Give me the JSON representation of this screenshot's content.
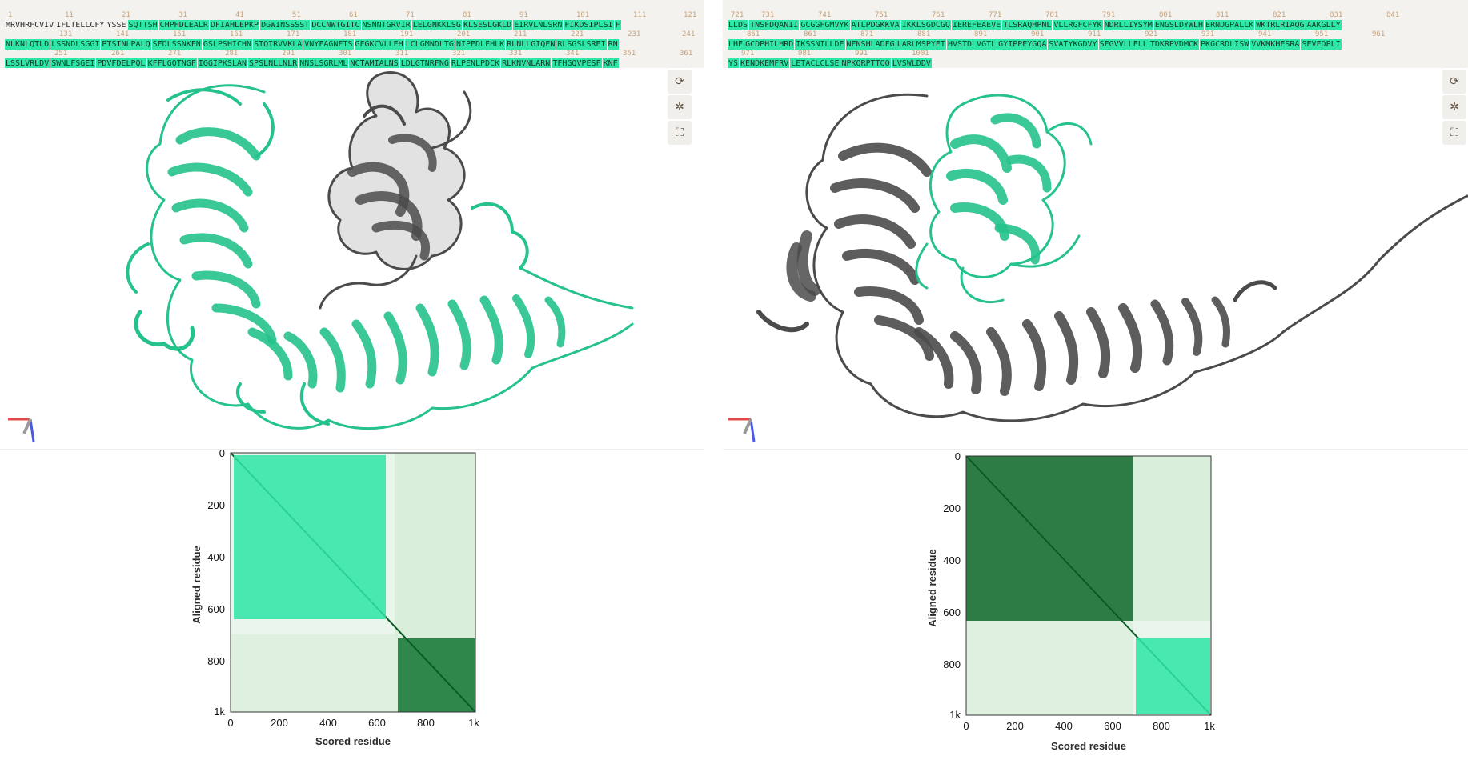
{
  "colors": {
    "accent": "#2ee6a6",
    "chain_highlight": "#25c28b",
    "chain_other": "#4b4b4b",
    "pae_dark": "#0c6a2a",
    "pae_light": "#e9f6ea",
    "selection": "#2ee6a6",
    "seq_bg": "#f4f2ee",
    "seq_num": "#c8a27a"
  },
  "icons": {
    "reset_view": "⟳",
    "center": "✲",
    "fullscreen": "⛶"
  },
  "left": {
    "sequence": {
      "rows": [
        {
          "numbers": [
            "1",
            "11",
            "21",
            "31",
            "41",
            "51",
            "61",
            "71",
            "81",
            "91",
            "101",
            "111",
            "121"
          ],
          "chunks": [
            {
              "t": "MRVHRFCVIV",
              "hl": false
            },
            {
              "t": "IFLTELLCFY",
              "hl": false
            },
            {
              "t": "YSSE",
              "hl": false
            },
            {
              "t": "SQTTSH",
              "hl": true
            },
            {
              "t": "CHPHDLEALR",
              "hl": true
            },
            {
              "t": "DFIAHLEPKP",
              "hl": true
            },
            {
              "t": "DGWINSSSST",
              "hl": true
            },
            {
              "t": "DCCNWTGITC",
              "hl": true
            },
            {
              "t": "NSNNTGRVIR",
              "hl": true
            },
            {
              "t": "LELGNKKLSG",
              "hl": true
            },
            {
              "t": "KLSESLGKLD",
              "hl": true
            },
            {
              "t": "EIRVLNLSRN",
              "hl": true
            },
            {
              "t": "FIKDSIPLSI",
              "hl": true
            },
            {
              "t": "F",
              "hl": true
            }
          ]
        },
        {
          "numbers": [
            "131",
            "141",
            "151",
            "161",
            "171",
            "181",
            "191",
            "201",
            "211",
            "221",
            "231",
            "241"
          ],
          "chunks": [
            {
              "t": "NLKNLQTLD",
              "hl": true
            },
            {
              "t": "LSSNDLSGGI",
              "hl": true
            },
            {
              "t": "PTSINLPALQ",
              "hl": true
            },
            {
              "t": "SFDLSSNKFN",
              "hl": true
            },
            {
              "t": "GSLPSHICHN",
              "hl": true
            },
            {
              "t": "STQIRVVKLA",
              "hl": true
            },
            {
              "t": "VNYFAGNFTS",
              "hl": true
            },
            {
              "t": "GFGKCVLLEH",
              "hl": true
            },
            {
              "t": "LCLGMNDLTG",
              "hl": true
            },
            {
              "t": "NIPEDLFHLK",
              "hl": true
            },
            {
              "t": "RLNLLGIQEN",
              "hl": true
            },
            {
              "t": "RLSGSLSREI",
              "hl": true
            },
            {
              "t": "RN",
              "hl": true
            }
          ]
        },
        {
          "numbers": [
            "251",
            "261",
            "271",
            "281",
            "291",
            "301",
            "311",
            "321",
            "331",
            "341",
            "351",
            "361"
          ],
          "chunks": [
            {
              "t": "LSSLVRLDV",
              "hl": true
            },
            {
              "t": "SWNLFSGEI",
              "hl": true
            },
            {
              "t": "PDVFDELPQL",
              "hl": true
            },
            {
              "t": "KFFLGQTNGF",
              "hl": true
            },
            {
              "t": "IGGIPKSLAN",
              "hl": true
            },
            {
              "t": "SPSLNLLNLR",
              "hl": true
            },
            {
              "t": "NNSLSGRLML",
              "hl": true
            },
            {
              "t": "NCTAMIALNS",
              "hl": true
            },
            {
              "t": "LDLGTNRFNG",
              "hl": true
            },
            {
              "t": "RLPENLPDCK",
              "hl": true
            },
            {
              "t": "RLKNVNLARN",
              "hl": true
            },
            {
              "t": "TFHGQVPESF",
              "hl": true
            },
            {
              "t": "KNF",
              "hl": true
            }
          ]
        }
      ]
    },
    "pae": {
      "ylabel": "Aligned residue",
      "xlabel": "Scored residue",
      "yticks": [
        "0",
        "200",
        "400",
        "600",
        "800",
        "1k"
      ],
      "xticks": [
        "0",
        "200",
        "400",
        "600",
        "800",
        "1k"
      ]
    }
  },
  "right": {
    "sequence": {
      "rows": [
        {
          "numbers": [
            "721",
            "731",
            "741",
            "751",
            "761",
            "771",
            "781",
            "791",
            "801",
            "811",
            "821",
            "831",
            "841"
          ],
          "chunks": [
            {
              "t": "LLDS",
              "hl": true
            },
            {
              "t": "TNSFDQANII",
              "hl": true
            },
            {
              "t": "GCGGFGMVYK",
              "hl": true
            },
            {
              "t": "ATLPDGKKVA",
              "hl": true
            },
            {
              "t": "IKKLSGDCGQ",
              "hl": true
            },
            {
              "t": "IEREFEAEVE",
              "hl": true
            },
            {
              "t": "TLSRAQHPNL",
              "hl": true
            },
            {
              "t": "VLLRGFCFYK",
              "hl": true
            },
            {
              "t": "NDRLLIYSYM",
              "hl": true
            },
            {
              "t": "ENGSLDYWLH",
              "hl": true
            },
            {
              "t": "ERNDGPALLK",
              "hl": true
            },
            {
              "t": "WKTRLRIAQG",
              "hl": true
            },
            {
              "t": "AAKGLLY",
              "hl": true
            }
          ]
        },
        {
          "numbers": [
            "851",
            "861",
            "871",
            "881",
            "891",
            "901",
            "911",
            "921",
            "931",
            "941",
            "951",
            "961"
          ],
          "chunks": [
            {
              "t": "LHE",
              "hl": true
            },
            {
              "t": "GCDPHILHRD",
              "hl": true
            },
            {
              "t": "IKSSNILLDE",
              "hl": true
            },
            {
              "t": "NFNSHLADFG",
              "hl": true
            },
            {
              "t": "LARLMSPYET",
              "hl": true
            },
            {
              "t": "HVSTDLVGTL",
              "hl": true
            },
            {
              "t": "GYIPPEYGQA",
              "hl": true
            },
            {
              "t": "SVATYKGDVY",
              "hl": true
            },
            {
              "t": "SFGVVLLELL",
              "hl": true
            },
            {
              "t": "TDKRPVDMCK",
              "hl": true
            },
            {
              "t": "PKGCRDLISW",
              "hl": true
            },
            {
              "t": "VVKMKHESRA",
              "hl": true
            },
            {
              "t": "SEVFDPLI",
              "hl": true
            }
          ]
        },
        {
          "numbers": [
            "971",
            "981",
            "991",
            "1001"
          ],
          "chunks": [
            {
              "t": "YS",
              "hl": true
            },
            {
              "t": "KENDKEMFRV",
              "hl": true
            },
            {
              "t": "LETACLCLSE",
              "hl": true
            },
            {
              "t": "NPKQRPTTQQ",
              "hl": true
            },
            {
              "t": "LVSWLDDV",
              "hl": true
            }
          ]
        }
      ]
    },
    "pae": {
      "ylabel": "Aligned residue",
      "xlabel": "Scored residue",
      "yticks": [
        "0",
        "200",
        "400",
        "600",
        "800",
        "1k"
      ],
      "xticks": [
        "0",
        "200",
        "400",
        "600",
        "800",
        "1k"
      ]
    }
  }
}
